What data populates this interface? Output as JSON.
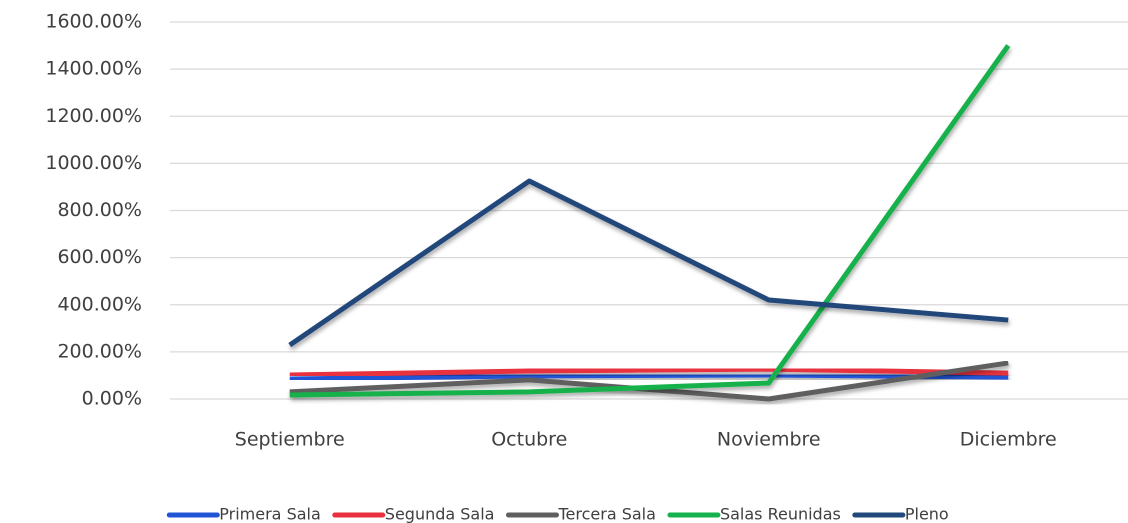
{
  "chart_data": {
    "type": "line",
    "categories": [
      "Septiembre",
      "Octubre",
      "Noviembre",
      "Diciembre"
    ],
    "series": [
      {
        "name": "Primera Sala",
        "color": "#2155d6",
        "values": [
          85,
          98,
          102,
          93
        ]
      },
      {
        "name": "Segunda Sala",
        "color": "#e8303f",
        "values": [
          102,
          119,
          127,
          110
        ]
      },
      {
        "name": "Tercera Sala",
        "color": "#5f5f5f",
        "values": [
          30,
          81,
          0,
          153
        ]
      },
      {
        "name": "Salas Reunidas",
        "color": "#14b14c",
        "values": [
          17,
          30,
          68,
          1500
        ]
      },
      {
        "name": "Pleno",
        "color": "#22477a",
        "values": [
          229,
          925,
          420,
          335
        ]
      }
    ],
    "ylim": [
      0,
      1600
    ],
    "yticks": [
      {
        "value": 0,
        "label": "0.00%"
      },
      {
        "value": 200,
        "label": "200.00%"
      },
      {
        "value": 400,
        "label": "400.00%"
      },
      {
        "value": 600,
        "label": "600.00%"
      },
      {
        "value": 800,
        "label": "800.00%"
      },
      {
        "value": 1000,
        "label": "1000.00%"
      },
      {
        "value": 1200,
        "label": "1200.00%"
      },
      {
        "value": 1400,
        "label": "1400.00%"
      },
      {
        "value": 1600,
        "label": "1600.00%"
      }
    ],
    "grid": true,
    "legend": "bottom"
  }
}
